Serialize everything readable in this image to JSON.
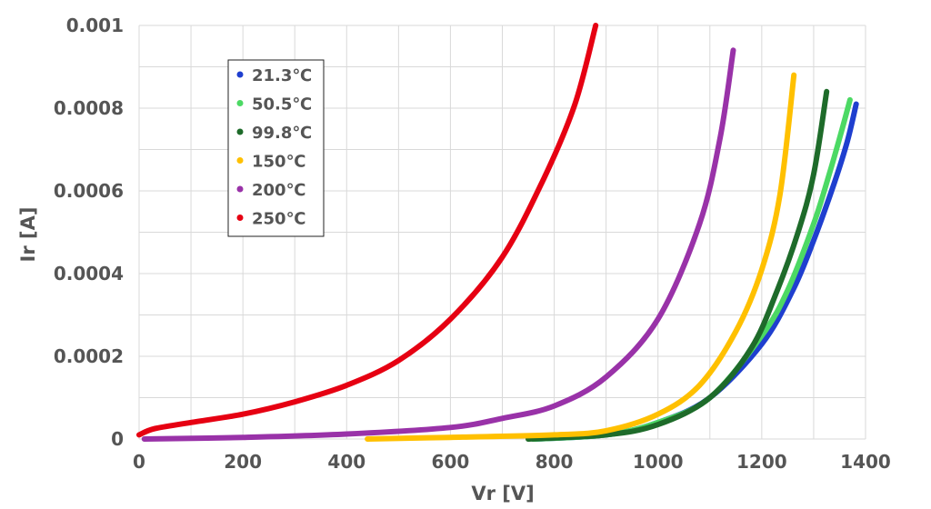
{
  "chart_data": {
    "type": "line",
    "xlabel": "Vr [V]",
    "ylabel": "Ir [A]",
    "xlim": [
      0,
      1400
    ],
    "ylim": [
      0,
      0.001
    ],
    "x_ticks": [
      0,
      200,
      400,
      600,
      800,
      1000,
      1200,
      1400
    ],
    "x_tick_labels": [
      "0",
      "200",
      "400",
      "600",
      "800",
      "1000",
      "1200",
      "1400"
    ],
    "y_ticks": [
      0,
      0.0002,
      0.0004,
      0.0006,
      0.0008,
      0.001
    ],
    "y_tick_labels": [
      "0",
      "0.0002",
      "0.0004",
      "0.0006",
      "0.0008",
      "0.001"
    ],
    "grid": true,
    "legend_position": "top-left",
    "series": [
      {
        "name": "21.3℃",
        "color": "#1f3fcf",
        "points": [
          [
            760,
            0
          ],
          [
            900,
            1e-05
          ],
          [
            1000,
            4e-05
          ],
          [
            1100,
            0.0001
          ],
          [
            1200,
            0.00023
          ],
          [
            1260,
            0.00036
          ],
          [
            1300,
            0.00048
          ],
          [
            1340,
            0.00062
          ],
          [
            1365,
            0.00072
          ],
          [
            1382,
            0.00081
          ]
        ]
      },
      {
        "name": "50.5℃",
        "color": "#4cd964",
        "points": [
          [
            760,
            0
          ],
          [
            900,
            1e-05
          ],
          [
            1000,
            4e-05
          ],
          [
            1100,
            0.0001
          ],
          [
            1200,
            0.00025
          ],
          [
            1250,
            0.00036
          ],
          [
            1300,
            0.00052
          ],
          [
            1330,
            0.00064
          ],
          [
            1355,
            0.00075
          ],
          [
            1370,
            0.00082
          ]
        ]
      },
      {
        "name": "99.8℃",
        "color": "#1e6b2a",
        "points": [
          [
            750,
            0
          ],
          [
            900,
            1e-05
          ],
          [
            1000,
            3.5e-05
          ],
          [
            1100,
            0.0001
          ],
          [
            1180,
            0.00022
          ],
          [
            1230,
            0.00036
          ],
          [
            1270,
            0.0005
          ],
          [
            1300,
            0.00064
          ],
          [
            1325,
            0.00084
          ]
        ]
      },
      {
        "name": "150℃",
        "color": "#ffc000",
        "points": [
          [
            440,
            0
          ],
          [
            600,
            4e-06
          ],
          [
            800,
            1e-05
          ],
          [
            900,
            2e-05
          ],
          [
            1000,
            6e-05
          ],
          [
            1080,
            0.00013
          ],
          [
            1150,
            0.00026
          ],
          [
            1200,
            0.00041
          ],
          [
            1235,
            0.00059
          ],
          [
            1262,
            0.00088
          ]
        ]
      },
      {
        "name": "200℃",
        "color": "#9932a8",
        "points": [
          [
            10,
            0
          ],
          [
            200,
            4e-06
          ],
          [
            400,
            1.2e-05
          ],
          [
            600,
            2.8e-05
          ],
          [
            700,
            5e-05
          ],
          [
            800,
            8e-05
          ],
          [
            900,
            0.00015
          ],
          [
            1000,
            0.00029
          ],
          [
            1080,
            0.00052
          ],
          [
            1120,
            0.00073
          ],
          [
            1145,
            0.00094
          ]
        ]
      },
      {
        "name": "250℃",
        "color": "#e60012",
        "points": [
          [
            0,
            1e-05
          ],
          [
            30,
            2.5e-05
          ],
          [
            100,
            4e-05
          ],
          [
            200,
            6e-05
          ],
          [
            300,
            9e-05
          ],
          [
            400,
            0.00013
          ],
          [
            500,
            0.00019
          ],
          [
            600,
            0.00029
          ],
          [
            700,
            0.00044
          ],
          [
            780,
            0.00063
          ],
          [
            840,
            0.00081
          ],
          [
            880,
            0.001
          ]
        ]
      }
    ]
  }
}
